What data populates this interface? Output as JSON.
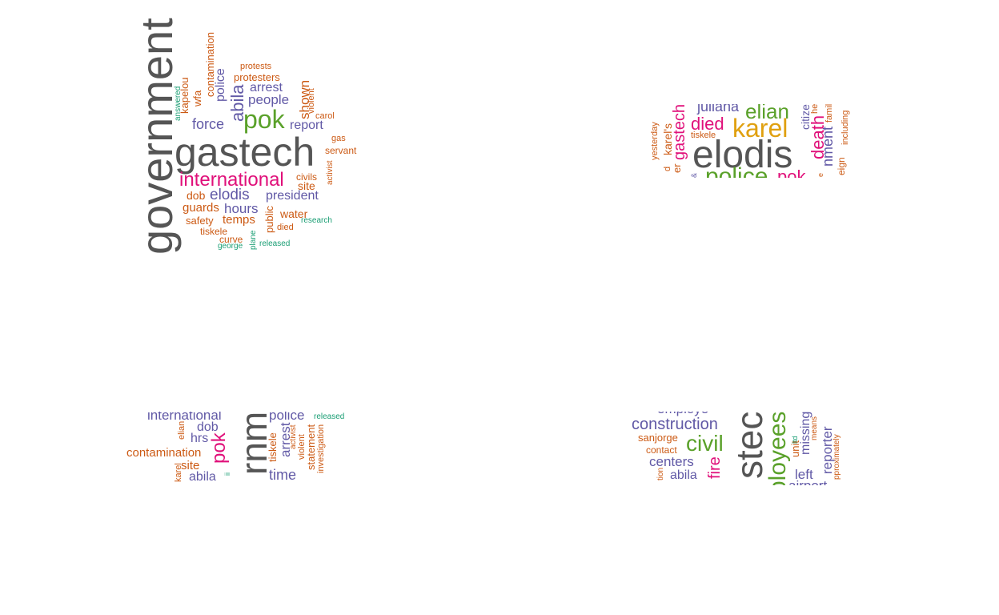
{
  "colors": {
    "gray": "#555555",
    "purple": "#6159a6",
    "orange": "#cc5a14",
    "green": "#1a9e74",
    "magenta": "#e0107a",
    "lime": "#5aa12a",
    "gold": "#e0a010"
  },
  "clouds": [
    {
      "name": "cloud-1",
      "words": [
        {
          "text": "government",
          "color": "gray",
          "rotated": true
        },
        {
          "text": "gastech",
          "color": "gray",
          "rotated": false
        },
        {
          "text": "pok",
          "color": "lime",
          "rotated": false
        },
        {
          "text": "international",
          "color": "magenta",
          "rotated": false
        },
        {
          "text": "abila",
          "color": "purple",
          "rotated": true
        },
        {
          "text": "people",
          "color": "purple",
          "rotated": false
        },
        {
          "text": "arrest",
          "color": "purple",
          "rotated": false
        },
        {
          "text": "force",
          "color": "purple",
          "rotated": false
        },
        {
          "text": "report",
          "color": "purple",
          "rotated": false
        },
        {
          "text": "police",
          "color": "purple",
          "rotated": true
        },
        {
          "text": "elodis",
          "color": "purple",
          "rotated": false
        },
        {
          "text": "president",
          "color": "purple",
          "rotated": false
        },
        {
          "text": "hours",
          "color": "purple",
          "rotated": false
        },
        {
          "text": "protesters",
          "color": "orange",
          "rotated": false
        },
        {
          "text": "protests",
          "color": "orange",
          "rotated": false
        },
        {
          "text": "contamination",
          "color": "orange",
          "rotated": true
        },
        {
          "text": "wfa",
          "color": "orange",
          "rotated": true
        },
        {
          "text": "kapelou",
          "color": "orange",
          "rotated": true
        },
        {
          "text": "answered",
          "color": "green",
          "rotated": true
        },
        {
          "text": "shown",
          "color": "orange",
          "rotated": true
        },
        {
          "text": "violent",
          "color": "orange",
          "rotated": true
        },
        {
          "text": "carol",
          "color": "orange",
          "rotated": false
        },
        {
          "text": "gas",
          "color": "orange",
          "rotated": false
        },
        {
          "text": "servant",
          "color": "orange",
          "rotated": false
        },
        {
          "text": "civils",
          "color": "orange",
          "rotated": false
        },
        {
          "text": "site",
          "color": "orange",
          "rotated": false
        },
        {
          "text": "activist",
          "color": "orange",
          "rotated": true
        },
        {
          "text": "dob",
          "color": "orange",
          "rotated": false
        },
        {
          "text": "guards",
          "color": "orange",
          "rotated": false
        },
        {
          "text": "water",
          "color": "orange",
          "rotated": false
        },
        {
          "text": "safety",
          "color": "orange",
          "rotated": false
        },
        {
          "text": "temps",
          "color": "orange",
          "rotated": false
        },
        {
          "text": "public",
          "color": "orange",
          "rotated": true
        },
        {
          "text": "research",
          "color": "green",
          "rotated": false
        },
        {
          "text": "tiskele",
          "color": "orange",
          "rotated": false
        },
        {
          "text": "died",
          "color": "orange",
          "rotated": false
        },
        {
          "text": "curve",
          "color": "orange",
          "rotated": false
        },
        {
          "text": "plane",
          "color": "green",
          "rotated": true
        },
        {
          "text": "released",
          "color": "green",
          "rotated": false
        },
        {
          "text": "george",
          "color": "green",
          "rotated": false
        }
      ]
    },
    {
      "name": "cloud-2",
      "words": [
        {
          "text": "elodis",
          "color": "gray",
          "rotated": false
        },
        {
          "text": "karel",
          "color": "gold",
          "rotated": false
        },
        {
          "text": "elian",
          "color": "lime",
          "rotated": false
        },
        {
          "text": "juliana",
          "color": "purple",
          "rotated": false
        },
        {
          "text": "died",
          "color": "magenta",
          "rotated": false
        },
        {
          "text": "tiskele",
          "color": "orange",
          "rotated": false
        },
        {
          "text": "gastech",
          "color": "magenta",
          "rotated": true
        },
        {
          "text": "karel's",
          "color": "orange",
          "rotated": true
        },
        {
          "text": "yesterday",
          "color": "orange",
          "rotated": true
        },
        {
          "text": "er",
          "color": "orange",
          "rotated": true
        },
        {
          "text": "d",
          "color": "orange",
          "rotated": true
        },
        {
          "text": "police",
          "color": "lime",
          "rotated": false
        },
        {
          "text": "pok",
          "color": "magenta",
          "rotated": false
        },
        {
          "text": "death",
          "color": "magenta",
          "rotated": true
        },
        {
          "text": "citize",
          "color": "purple",
          "rotated": true
        },
        {
          "text": "he",
          "color": "orange",
          "rotated": true
        },
        {
          "text": "nment",
          "color": "purple",
          "rotated": true
        },
        {
          "text": "famil",
          "color": "orange",
          "rotated": true
        },
        {
          "text": "eign",
          "color": "orange",
          "rotated": true
        },
        {
          "text": "including",
          "color": "orange",
          "rotated": true
        },
        {
          "text": "e",
          "color": "orange",
          "rotated": true
        },
        {
          "text": "&",
          "color": "purple",
          "rotated": true
        }
      ]
    },
    {
      "name": "cloud-3",
      "words": [
        {
          "text": "international",
          "color": "purple",
          "rotated": false
        },
        {
          "text": "police",
          "color": "purple",
          "rotated": false
        },
        {
          "text": "released",
          "color": "green",
          "rotated": false
        },
        {
          "text": "elian",
          "color": "orange",
          "rotated": true
        },
        {
          "text": "dob",
          "color": "purple",
          "rotated": false
        },
        {
          "text": "hrs",
          "color": "purple",
          "rotated": false
        },
        {
          "text": "pok",
          "color": "magenta",
          "rotated": true
        },
        {
          "text": "rnm",
          "color": "gray",
          "rotated": true
        },
        {
          "text": "tiskele",
          "color": "orange",
          "rotated": true
        },
        {
          "text": "arrest",
          "color": "purple",
          "rotated": true
        },
        {
          "text": "activist",
          "color": "orange",
          "rotated": true
        },
        {
          "text": "violent",
          "color": "orange",
          "rotated": true
        },
        {
          "text": "statement",
          "color": "orange",
          "rotated": true
        },
        {
          "text": "investigation",
          "color": "orange",
          "rotated": true
        },
        {
          "text": "contamination",
          "color": "orange",
          "rotated": false
        },
        {
          "text": "site",
          "color": "orange",
          "rotated": false
        },
        {
          "text": "karel",
          "color": "orange",
          "rotated": true
        },
        {
          "text": "abila",
          "color": "purple",
          "rotated": false
        },
        {
          "text": "ii",
          "color": "green",
          "rotated": true
        },
        {
          "text": "time",
          "color": "purple",
          "rotated": false
        }
      ]
    },
    {
      "name": "cloud-4",
      "words": [
        {
          "text": "employe",
          "color": "purple",
          "rotated": false
        },
        {
          "text": "construction",
          "color": "purple",
          "rotated": false
        },
        {
          "text": "sanjorge",
          "color": "orange",
          "rotated": false
        },
        {
          "text": "civil",
          "color": "lime",
          "rotated": false
        },
        {
          "text": "contact",
          "color": "orange",
          "rotated": false
        },
        {
          "text": "centers",
          "color": "purple",
          "rotated": false
        },
        {
          "text": "tion",
          "color": "orange",
          "rotated": true
        },
        {
          "text": "abila",
          "color": "purple",
          "rotated": false
        },
        {
          "text": "fire",
          "color": "magenta",
          "rotated": true
        },
        {
          "text": "stec",
          "color": "gray",
          "rotated": true
        },
        {
          "text": "ployees",
          "color": "lime",
          "rotated": true
        },
        {
          "text": "unit",
          "color": "orange",
          "rotated": true
        },
        {
          "text": "ltd",
          "color": "green",
          "rotated": true
        },
        {
          "text": "missing",
          "color": "purple",
          "rotated": true
        },
        {
          "text": "left",
          "color": "purple",
          "rotated": false
        },
        {
          "text": "means",
          "color": "orange",
          "rotated": true
        },
        {
          "text": "reporter",
          "color": "purple",
          "rotated": true
        },
        {
          "text": "pproximately",
          "color": "orange",
          "rotated": true
        },
        {
          "text": "airport",
          "color": "purple",
          "rotated": false
        }
      ]
    }
  ]
}
